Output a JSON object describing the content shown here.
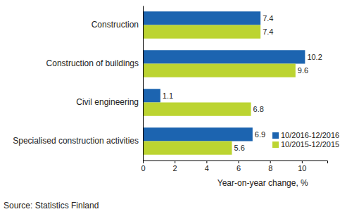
{
  "chart_data": {
    "type": "bar",
    "orientation": "horizontal",
    "categories": [
      "Construction",
      "Construction of buildings",
      "Civil engineering",
      "Specialised construction activities"
    ],
    "series": [
      {
        "name": "10/2016-12/2016",
        "color": "#1c64b0",
        "values": [
          7.4,
          10.2,
          1.1,
          6.9
        ]
      },
      {
        "name": "10/2015-12/2015",
        "color": "#bcd431",
        "values": [
          7.4,
          9.6,
          6.8,
          5.6
        ]
      }
    ],
    "xlabel": "Year-on-year change, %",
    "xlim": [
      0,
      11.6
    ],
    "xticks": [
      0,
      2,
      4,
      6,
      8,
      10
    ],
    "grid": false,
    "data_labels": true,
    "legend": "lower right",
    "annotations": [
      "Source: Statistics Finland"
    ]
  }
}
